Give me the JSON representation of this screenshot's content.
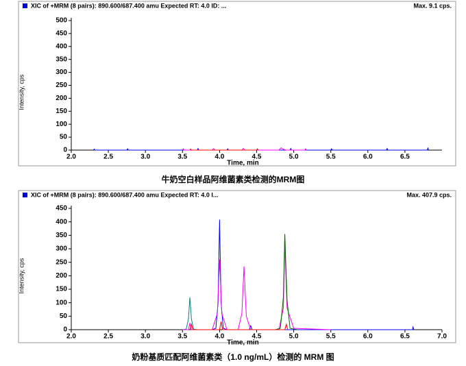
{
  "chart_data": [
    {
      "type": "line",
      "header": "XIC of +MRM (8 pairs): 890.600/687.400 amu Expected RT: 4.0 ID: ...",
      "max_label": "Max. 9.1 cps.",
      "ylabel": "Intensity, cps",
      "xlabel": "Time, min",
      "caption": "牛奶空白样品阿维菌素类检测的MRM图",
      "xlim": [
        2.0,
        7.0
      ],
      "ylim": [
        0,
        500
      ],
      "xticks": [
        {
          "value": 2,
          "label": "2.0"
        },
        2.5,
        {
          "value": 3,
          "label": "3.0"
        },
        3.5,
        {
          "value": 4,
          "label": "4.0"
        },
        4.5,
        {
          "value": 5,
          "label": "5.0"
        },
        5.5,
        {
          "value": 6,
          "label": "6.0"
        },
        6.5
      ],
      "yticks": [
        0,
        50,
        100,
        150,
        200,
        250,
        300,
        350,
        400,
        450,
        500
      ],
      "series": [
        {
          "color": "#0000ff",
          "x": [
            2.3,
            2.31,
            2.32,
            2.75,
            2.76,
            2.77,
            3.7,
            3.71,
            3.72,
            4.1,
            4.11,
            4.12,
            4.95,
            4.96,
            4.97,
            5.5,
            5.51,
            5.52,
            6.25,
            6.26,
            6.27,
            6.8,
            6.81,
            6.82
          ],
          "values": [
            0,
            4,
            0,
            0,
            5,
            0,
            0,
            6,
            0,
            0,
            5,
            0,
            0,
            6,
            0,
            0,
            5,
            0,
            0,
            6,
            0,
            0,
            8,
            0
          ]
        },
        {
          "color": "#ff00ff",
          "x": [
            3.5,
            3.51,
            3.52,
            3.9,
            3.92,
            3.94,
            4.3,
            4.32,
            4.34,
            4.8,
            4.83,
            4.86,
            4.9,
            5.15,
            5.16,
            5.17
          ],
          "values": [
            0,
            5,
            0,
            0,
            6,
            0,
            0,
            7,
            0,
            0,
            9,
            3,
            0,
            0,
            5,
            0
          ]
        },
        {
          "color": "#ff0000",
          "x": [
            3.6,
            3.61,
            3.62,
            4.5,
            4.51,
            4.52
          ],
          "values": [
            0,
            4,
            0,
            0,
            5,
            0
          ]
        }
      ]
    },
    {
      "type": "line",
      "header": "XIC of +MRM (8 pairs): 890.600/687.400 amu Expected RT: 4.0 I...",
      "max_label": "Max. 407.9 cps.",
      "ylabel": "Intensity, cps",
      "xlabel": "Time, min",
      "caption": "奶粉基质匹配阿维菌素类（1.0 ng/mL）检测的 MRM 图",
      "xlim": [
        2.0,
        7.0
      ],
      "ylim": [
        0,
        450
      ],
      "xticks": [
        {
          "value": 2,
          "label": "2.0"
        },
        2.5,
        {
          "value": 3,
          "label": "3.0"
        },
        3.5,
        {
          "value": 4,
          "label": "4.0"
        },
        4.5,
        {
          "value": 5,
          "label": "5.0"
        },
        5.5,
        {
          "value": 6,
          "label": "6.0"
        },
        6.5,
        {
          "value": 7,
          "label": "7.0"
        }
      ],
      "yticks": [
        0,
        50,
        100,
        150,
        200,
        250,
        300,
        350,
        400,
        450
      ],
      "series": [
        {
          "color": "#008080",
          "x": [
            3.5,
            3.55,
            3.58,
            3.6,
            3.62,
            3.65,
            3.7
          ],
          "values": [
            0,
            2,
            40,
            120,
            40,
            2,
            0
          ]
        },
        {
          "color": "#0000ff",
          "x": [
            3.9,
            3.95,
            3.98,
            4.0,
            4.02,
            4.05,
            4.1,
            4.4,
            4.42,
            4.44,
            6.6,
            6.61,
            6.62
          ],
          "values": [
            0,
            5,
            100,
            408,
            100,
            5,
            0,
            0,
            15,
            0,
            0,
            10,
            0
          ]
        },
        {
          "color": "#ff00ff",
          "x": [
            3.5,
            3.58,
            3.6,
            3.62,
            3.9,
            3.97,
            4.0,
            4.03,
            4.1,
            4.25,
            4.3,
            4.33,
            4.36,
            4.42,
            4.8,
            4.86,
            4.88,
            4.91,
            5.0,
            5.5
          ],
          "values": [
            0,
            0,
            25,
            0,
            0,
            60,
            260,
            60,
            0,
            0,
            60,
            235,
            50,
            0,
            0,
            80,
            315,
            80,
            5,
            0
          ]
        },
        {
          "color": "#006400",
          "x": [
            4.75,
            4.82,
            4.86,
            4.88,
            4.91,
            4.95,
            5.05
          ],
          "values": [
            0,
            5,
            120,
            355,
            110,
            5,
            0
          ]
        },
        {
          "color": "#ff0000",
          "x": [
            3.6,
            3.62,
            3.64,
            4.0,
            4.02,
            4.04,
            4.88,
            4.9,
            4.92
          ],
          "values": [
            0,
            20,
            0,
            0,
            30,
            0,
            0,
            20,
            0
          ]
        }
      ]
    }
  ]
}
